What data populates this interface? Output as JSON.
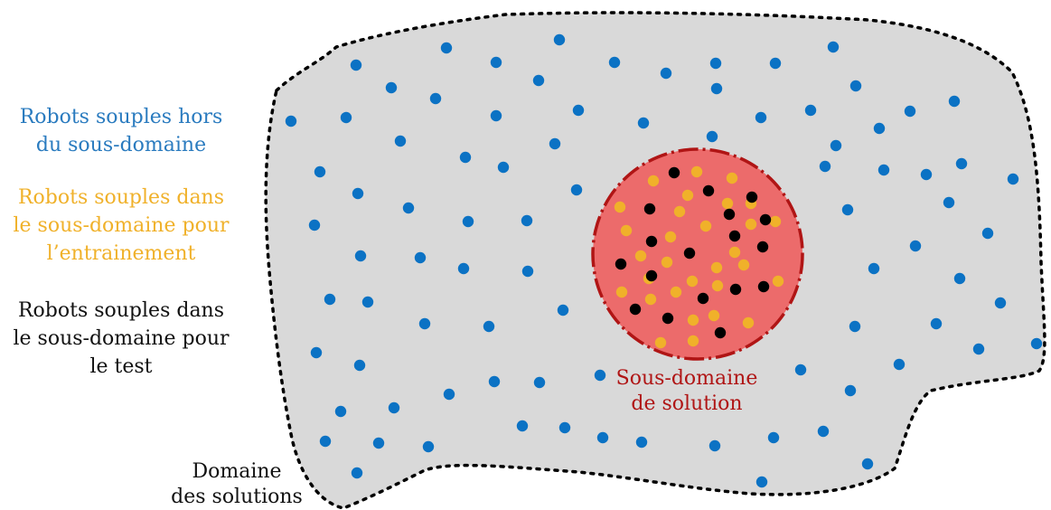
{
  "colors": {
    "domain_fill": "#d9d9d9",
    "domain_border": "#000000",
    "subdomain_fill": "#ec6b6b",
    "subdomain_border": "#b01515",
    "outside_points": "#0b72c4",
    "train_points": "#f0b12a",
    "test_points": "#000000",
    "text_outside": "#2a7bbf",
    "text_train": "#f0b12a",
    "text_test": "#111111",
    "text_subdomain": "#b01515"
  },
  "legend": {
    "outside": {
      "lines": [
        "Robots souples hors",
        "du sous-domaine"
      ]
    },
    "train": {
      "lines": [
        "Robots souples dans",
        "le sous-domaine pour",
        "l’entrainement"
      ]
    },
    "test": {
      "lines": [
        "Robots souples dans",
        "le sous-domaine pour",
        "le test"
      ]
    }
  },
  "labels": {
    "domain": [
      "Domaine",
      "des solutions"
    ],
    "subdomain": [
      "Sous-domaine",
      "de solution"
    ]
  }
}
